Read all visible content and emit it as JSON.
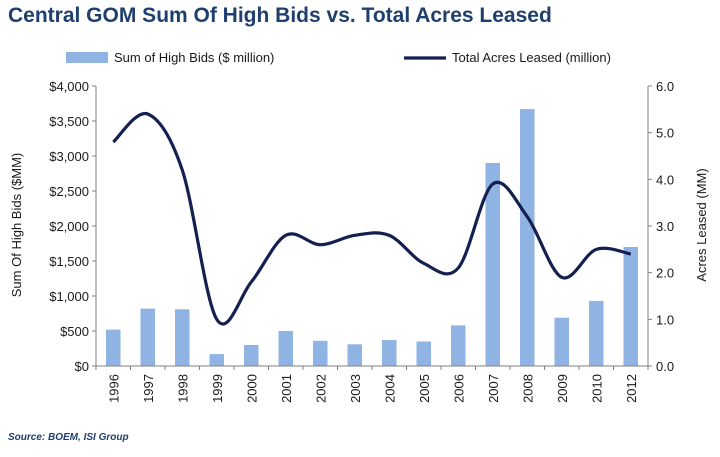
{
  "title": "Central GOM Sum Of High Bids vs. Total Acres Leased",
  "source": "Source: BOEM, ISI Group",
  "colors": {
    "bars": "#8fb3e3",
    "line": "#14204f",
    "title": "#1f3f6e"
  },
  "chart_data": {
    "type": "bar+line",
    "categories": [
      "1996",
      "1997",
      "1998",
      "1999",
      "2000",
      "2001",
      "2002",
      "2003",
      "2004",
      "2005",
      "2006",
      "2007",
      "2008",
      "2009",
      "2010",
      "2012"
    ],
    "series": [
      {
        "name": "Sum of High Bids ($ million)",
        "type": "bar",
        "axis": "left",
        "values": [
          520,
          820,
          810,
          170,
          300,
          500,
          360,
          310,
          370,
          350,
          580,
          2900,
          3670,
          690,
          930,
          1700
        ]
      },
      {
        "name": "Total Acres Leased (million)",
        "type": "line",
        "axis": "right",
        "values": [
          4.8,
          5.4,
          4.2,
          1.0,
          1.8,
          2.8,
          2.6,
          2.8,
          2.8,
          2.2,
          2.1,
          3.9,
          3.2,
          1.9,
          2.5,
          2.4
        ]
      }
    ],
    "ylabel_left": "Sum Of High Bids ($MM)",
    "ylabel_right": "Acres Leased (MM)",
    "ylim_left": [
      0,
      4000
    ],
    "ylim_right": [
      0,
      6
    ],
    "yticks_left": [
      "$0",
      "$500",
      "$1,000",
      "$1,500",
      "$2,000",
      "$2,500",
      "$3,000",
      "$3,500",
      "$4,000"
    ],
    "yticks_right": [
      "0.0",
      "1.0",
      "2.0",
      "3.0",
      "4.0",
      "5.0",
      "6.0"
    ],
    "legend_position": "top",
    "grid": false
  }
}
